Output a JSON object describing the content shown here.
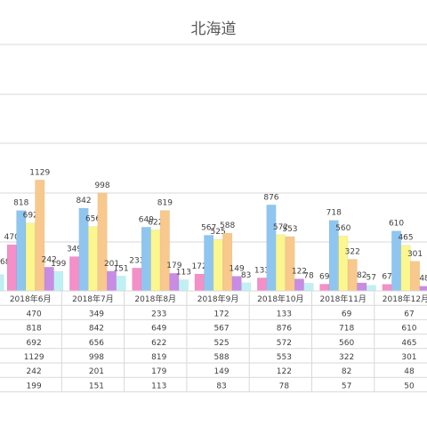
{
  "chart_data": {
    "type": "bar",
    "title": "北海道",
    "categories": [
      "2018年6月",
      "2018年7月",
      "2018年8月",
      "2018年9月",
      "2018年10月",
      "2018年11月",
      "2018年12月"
    ],
    "partial_left": {
      "values_visible_labels": [
        "68"
      ]
    },
    "series": [
      {
        "color": "#f48fc8",
        "values": [
          470,
          349,
          233,
          172,
          133,
          69,
          67
        ]
      },
      {
        "color": "#8fc6f0",
        "values": [
          818,
          842,
          649,
          567,
          876,
          718,
          610
        ]
      },
      {
        "color": "#fbf68e",
        "values": [
          692,
          656,
          622,
          525,
          572,
          560,
          465
        ]
      },
      {
        "color": "#f8c88c",
        "values": [
          1129,
          998,
          819,
          588,
          553,
          322,
          301
        ]
      },
      {
        "color": "#c88ce4",
        "values": [
          242,
          201,
          179,
          149,
          122,
          82,
          48
        ]
      },
      {
        "color": "#bff1f4",
        "values": [
          199,
          151,
          113,
          83,
          78,
          57,
          50
        ]
      }
    ],
    "ylim": [
      0,
      1400
    ],
    "grid": true,
    "legend": "data-table"
  }
}
